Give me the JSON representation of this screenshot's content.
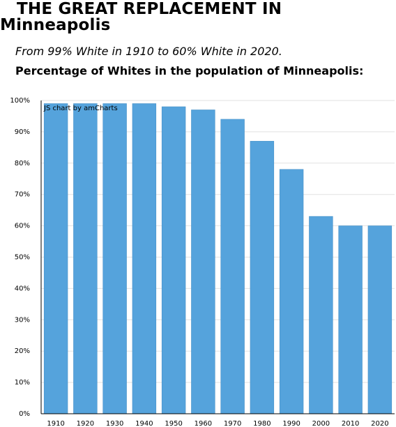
{
  "header": {
    "title_line1": "THE GREAT REPLACEMENT IN",
    "title_line2": "Minneapolis",
    "subtitle": "From 99% White in 1910 to 60% White in 2020.",
    "chart_heading": "Percentage of Whites in the population of Minneapolis:"
  },
  "credit": "JS chart by amCharts",
  "colors": {
    "bar_fill": "#55a3dc",
    "bar_stroke": "#4a93c8",
    "grid": "#e2e2e2",
    "axis": "#000000"
  },
  "chart_data": {
    "type": "bar",
    "categories": [
      "1910",
      "1920",
      "1930",
      "1940",
      "1950",
      "1960",
      "1970",
      "1980",
      "1990",
      "2000",
      "2010",
      "2020"
    ],
    "values": [
      99,
      99,
      99,
      99,
      98,
      97,
      94,
      87,
      78,
      63,
      60,
      60
    ],
    "title": "Percentage of Whites in the population of Minneapolis:",
    "xlabel": "",
    "ylabel": "",
    "ylim": [
      0,
      100
    ],
    "y_ticks": [
      "0%",
      "10%",
      "20%",
      "30%",
      "40%",
      "50%",
      "60%",
      "70%",
      "80%",
      "90%",
      "100%"
    ],
    "grid": true,
    "legend": "none"
  }
}
